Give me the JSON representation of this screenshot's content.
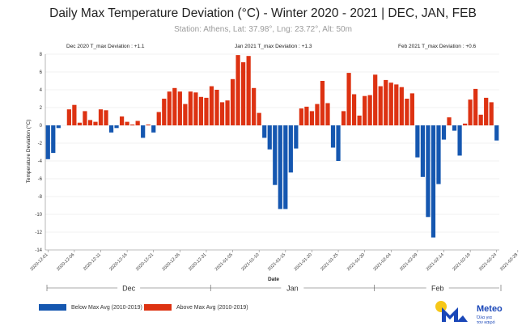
{
  "header": {
    "title": "Daily Max Temperature Deviation (°C) - Winter 2020 - 2021 | DEC, JAN, FEB",
    "subtitle": "Station: Athens, Lat: 37.98°, Lng: 23.72°, Alt: 50m"
  },
  "monthly_annotations": [
    "Dec 2020 T_max Deviation : +1.1",
    "Jan 2021 T_max Deviation : +1.3",
    "Feb 2021 T_max Deviation : +0.6"
  ],
  "legend": {
    "below": "Below Max Avg (2010-2019)",
    "above": "Above Max Avg (2010-2019)"
  },
  "logo": {
    "name": "Meteo",
    "tagline_line1": "Όλα για",
    "tagline_line2": "τον καιρό"
  },
  "colors": {
    "below": "#1557b0",
    "above": "#dd3212",
    "grid": "#e3e3e3"
  },
  "chart_data": {
    "type": "bar",
    "title": "Daily Max Temperature Deviation (°C) - Winter 2020 - 2021 | DEC, JAN, FEB",
    "xlabel": "Date",
    "ylabel": "Temperature Deviation (°C)",
    "ylim": [
      -14,
      8
    ],
    "yticks": [
      -14,
      -12,
      -10,
      -8,
      -6,
      -4,
      -2,
      0,
      2,
      4,
      6,
      8
    ],
    "start_date": "2020-12-01",
    "xtick_labels": [
      "2020-12-01",
      "2020-12-06",
      "2020-12-11",
      "2020-12-16",
      "2020-12-21",
      "2020-12-26",
      "2020-12-31",
      "2021-01-05",
      "2021-01-10",
      "2021-01-15",
      "2021-01-20",
      "2021-01-25",
      "2021-01-30",
      "2021-02-04",
      "2021-02-09",
      "2021-02-14",
      "2021-02-19",
      "2021-02-24",
      "2021-02-28"
    ],
    "month_labels": [
      "Dec",
      "Jan",
      "Feb"
    ],
    "values": [
      -3.8,
      -3.1,
      -0.3,
      0,
      1.8,
      2.3,
      0.3,
      1.6,
      0.6,
      0.4,
      1.8,
      1.7,
      -0.8,
      -0.3,
      1.0,
      0.4,
      0.1,
      0.5,
      -1.4,
      0.1,
      -0.8,
      1.5,
      3.0,
      3.8,
      4.2,
      3.8,
      2.4,
      3.8,
      3.7,
      3.2,
      3.1,
      4.4,
      4.0,
      2.6,
      2.8,
      5.2,
      7.9,
      7.1,
      7.8,
      4.2,
      1.4,
      -1.4,
      -2.7,
      -6.7,
      -9.4,
      -9.4,
      -5.3,
      -2.6,
      1.9,
      2.1,
      1.6,
      2.4,
      5.0,
      2.5,
      -2.5,
      -4.0,
      1.6,
      5.9,
      3.5,
      1.1,
      3.3,
      3.4,
      5.7,
      4.4,
      5.1,
      4.8,
      4.6,
      4.3,
      3.0,
      3.6,
      -3.6,
      -5.8,
      -10.3,
      -12.6,
      -6.6,
      -1.6,
      0.9,
      -0.6,
      -3.4,
      0.2,
      2.9,
      4.1,
      1.2,
      3.1,
      2.6,
      -1.7
    ]
  }
}
